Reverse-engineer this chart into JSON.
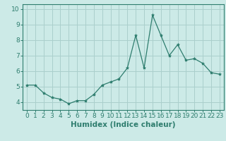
{
  "x": [
    0,
    1,
    2,
    3,
    4,
    5,
    6,
    7,
    8,
    9,
    10,
    11,
    12,
    13,
    14,
    15,
    16,
    17,
    18,
    19,
    20,
    21,
    22,
    23
  ],
  "y": [
    5.1,
    5.1,
    4.6,
    4.3,
    4.2,
    3.9,
    4.1,
    4.1,
    4.5,
    5.1,
    5.3,
    5.5,
    6.2,
    8.3,
    6.2,
    9.6,
    8.3,
    7.0,
    7.7,
    6.7,
    6.8,
    6.5,
    5.9,
    5.8
  ],
  "line_color": "#2e7d6e",
  "marker": "*",
  "marker_size": 3,
  "bg_color": "#cceae7",
  "grid_color": "#aacfcc",
  "xlabel": "Humidex (Indice chaleur)",
  "xlabel_fontsize": 7.5,
  "xlabel_weight": "bold",
  "ylim": [
    3.5,
    10.3
  ],
  "xlim": [
    -0.5,
    23.5
  ],
  "yticks": [
    4,
    5,
    6,
    7,
    8,
    9,
    10
  ],
  "xticks": [
    0,
    1,
    2,
    3,
    4,
    5,
    6,
    7,
    8,
    9,
    10,
    11,
    12,
    13,
    14,
    15,
    16,
    17,
    18,
    19,
    20,
    21,
    22,
    23
  ],
  "tick_fontsize": 6.5,
  "linewidth": 0.9
}
